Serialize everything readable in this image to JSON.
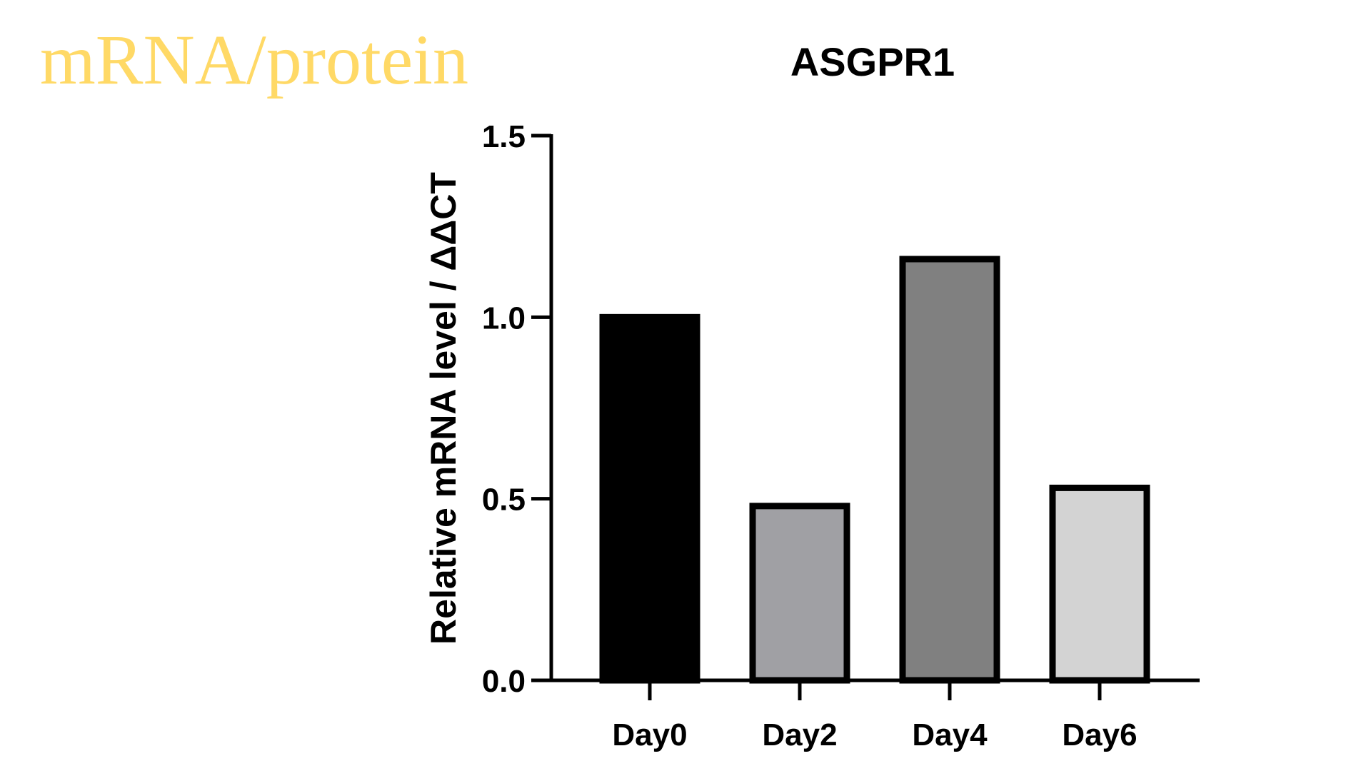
{
  "slide": {
    "heading": "mRNA/protein",
    "heading_color": "#FFD966"
  },
  "chart_data": {
    "type": "bar",
    "title": "ASGPR1",
    "xlabel": "",
    "ylabel": "Relative mRNA level / ΔΔCT",
    "categories": [
      "Day0",
      "Day2",
      "Day4",
      "Day6"
    ],
    "values": [
      1.0,
      0.48,
      1.16,
      0.53
    ],
    "bar_colors": [
      "#000000",
      "#A0A0A4",
      "#808080",
      "#D3D3D3"
    ],
    "bar_outline": "#000000",
    "ylim": [
      0,
      1.5
    ],
    "yticks": [
      {
        "value": 0,
        "label": "0.0"
      },
      {
        "value": 0.5,
        "label": "0.5"
      },
      {
        "value": 1.0,
        "label": "1.0"
      },
      {
        "value": 1.5,
        "label": "1.5"
      }
    ],
    "grid": false,
    "legend": "none"
  }
}
